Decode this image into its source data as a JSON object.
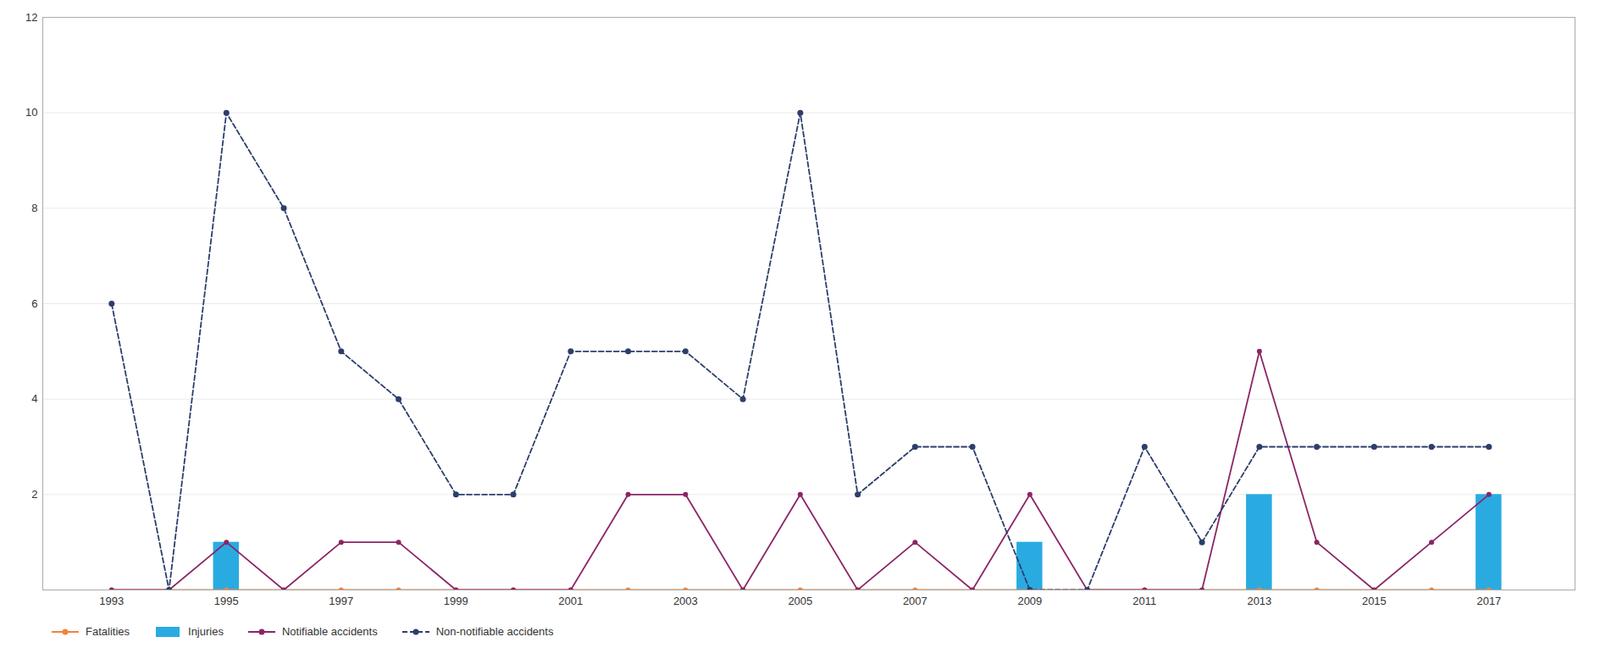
{
  "chart_data": {
    "type": "line",
    "x": [
      1993,
      1994,
      1995,
      1996,
      1997,
      1998,
      1999,
      2000,
      2001,
      2002,
      2003,
      2004,
      2005,
      2006,
      2007,
      2008,
      2009,
      2010,
      2011,
      2012,
      2013,
      2014,
      2015,
      2016,
      2017
    ],
    "series": [
      {
        "name": "Fatalities",
        "type": "line",
        "color": "#f0843c",
        "marker": "o",
        "line_style": "solid",
        "values": [
          0,
          0,
          0,
          0,
          0,
          0,
          0,
          0,
          0,
          0,
          0,
          0,
          0,
          0,
          0,
          0,
          0,
          0,
          0,
          0,
          0,
          0,
          0,
          0,
          0
        ]
      },
      {
        "name": "Injuries",
        "type": "bar",
        "color": "#29abe2",
        "values": [
          0,
          0,
          1,
          0,
          0,
          0,
          0,
          0,
          0,
          0,
          0,
          0,
          0,
          0,
          0,
          0,
          1,
          0,
          0,
          0,
          2,
          0,
          0,
          0,
          2
        ]
      },
      {
        "name": "Notifiable accidents",
        "type": "line",
        "color": "#8b2566",
        "marker": "o",
        "line_style": "solid",
        "values": [
          0,
          0,
          1,
          0,
          1,
          1,
          0,
          0,
          0,
          2,
          2,
          0,
          2,
          0,
          1,
          0,
          2,
          0,
          0,
          0,
          5,
          1,
          0,
          1,
          2
        ]
      },
      {
        "name": "Non-notifiable accidents",
        "type": "line",
        "color": "#2c3e6b",
        "marker": "o",
        "line_style": "dashed",
        "values": [
          6,
          0,
          10,
          8,
          5,
          4,
          2,
          2,
          5,
          5,
          5,
          4,
          10,
          2,
          3,
          3,
          0,
          0,
          3,
          1,
          3,
          3,
          3,
          3,
          3
        ]
      }
    ],
    "xlim": [
      1991.8,
      2018.5
    ],
    "xticks": [
      1993,
      1995,
      1997,
      1999,
      2001,
      2003,
      2005,
      2007,
      2009,
      2011,
      2013,
      2015,
      2017
    ],
    "ylim": [
      0,
      12
    ],
    "yticks": [
      2,
      4,
      6,
      8,
      10,
      12
    ],
    "grid": true,
    "legend": "bottom"
  }
}
